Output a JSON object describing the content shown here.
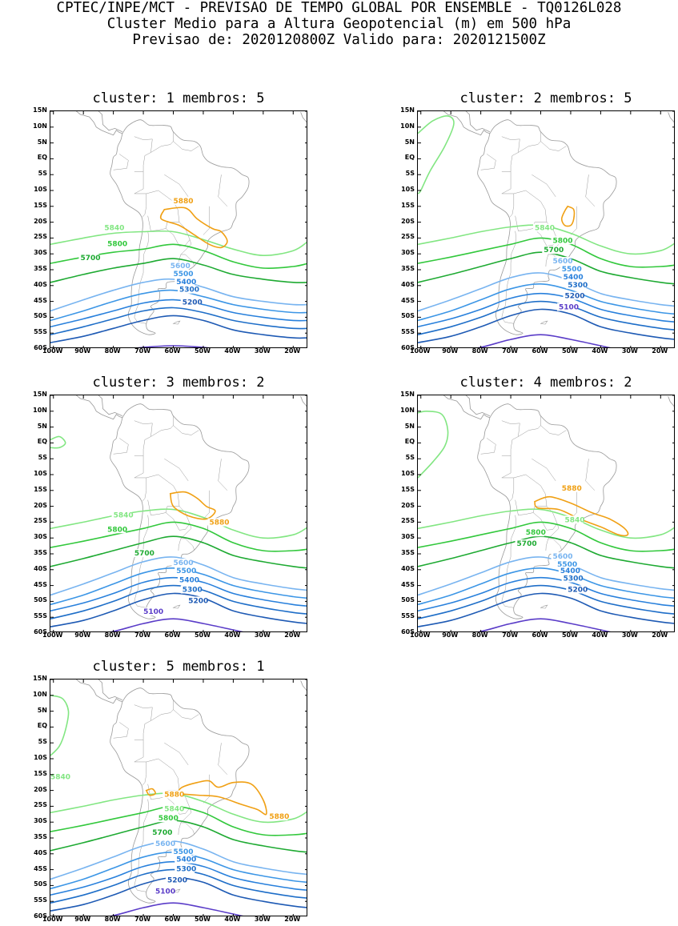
{
  "header": {
    "line1": "CPTEC/INPE/MCT - PREVISAO DE TEMPO GLOBAL POR ENSEMBLE - TQ0126L028",
    "line2": "Cluster Medio para a Altura Geopotencial (m) em 500 hPa",
    "line3": "Previsao de: 2020120800Z   Valido para: 2020121500Z"
  },
  "axes": {
    "lat_labels": [
      "15N",
      "10N",
      "5N",
      "EQ",
      "5S",
      "10S",
      "15S",
      "20S",
      "25S",
      "30S",
      "35S",
      "40S",
      "45S",
      "50S",
      "55S",
      "60S"
    ],
    "lon_labels": [
      "100W",
      "90W",
      "80W",
      "70W",
      "60W",
      "50W",
      "40W",
      "30W",
      "20W"
    ]
  },
  "colors": {
    "c5100": "#5a3cc8",
    "c5200": "#1e5ab4",
    "c5300": "#1e6ec8",
    "c5400": "#2880dc",
    "c5500": "#3c96e6",
    "c5600": "#78b4f0",
    "c5700": "#1eaa32",
    "c5800": "#32c83c",
    "c5840": "#82e682",
    "c5880": "#f0a014",
    "coast": "#999999"
  },
  "panels": [
    {
      "title": "cluster: 1   membros: 5",
      "labels": [
        "5880",
        "5840",
        "5800",
        "5700",
        "5600",
        "5500",
        "5400",
        "5300",
        "5200"
      ]
    },
    {
      "title": "cluster: 2   membros: 5",
      "labels": [
        "5840",
        "5800",
        "5700",
        "5600",
        "5500",
        "5400",
        "5300",
        "5200",
        "5100"
      ]
    },
    {
      "title": "cluster: 3   membros: 2",
      "labels": [
        "5880",
        "5840",
        "5800",
        "5700",
        "5600",
        "5500",
        "5400",
        "5300",
        "5200",
        "5100"
      ]
    },
    {
      "title": "cluster: 4   membros: 2",
      "labels": [
        "5880",
        "5840",
        "5800",
        "5700",
        "5600",
        "5500",
        "5400",
        "5300",
        "5200"
      ]
    },
    {
      "title": "cluster: 5   membros: 1",
      "labels": [
        "5840",
        "5880",
        "5880",
        "5840",
        "5800",
        "5700",
        "5600",
        "5500",
        "5400",
        "5300",
        "5200",
        "5100"
      ]
    }
  ]
}
